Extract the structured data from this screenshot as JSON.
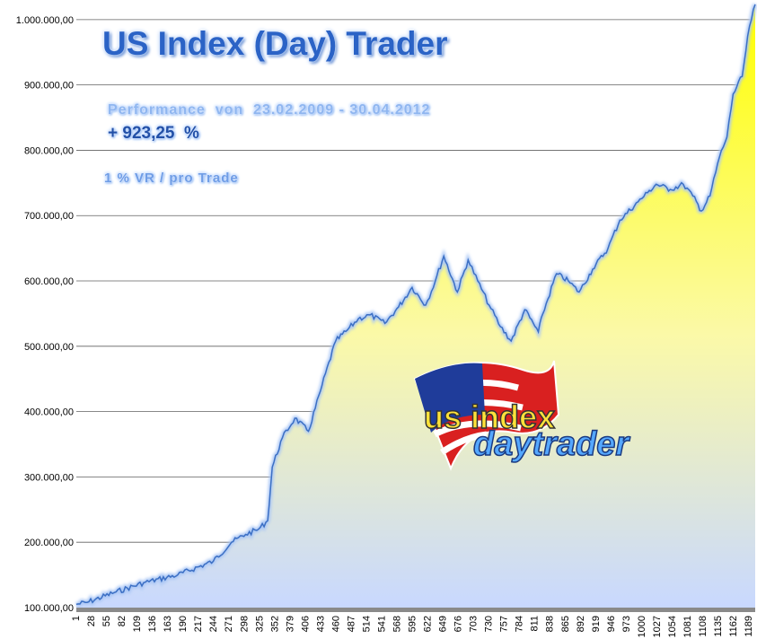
{
  "chart_data": {
    "type": "area",
    "title": "US Index (Day) Trader",
    "annotations": {
      "performance": "Performance  von  23.02.2009 - 30.04.2012",
      "percent": "+ 923,25  %",
      "risk": "1 % VR / pro Trade"
    },
    "logo_text": "us index daytrader",
    "ylim": [
      100000,
      1030000
    ],
    "yticks": [
      100000,
      200000,
      300000,
      400000,
      500000,
      600000,
      700000,
      800000,
      900000,
      1000000
    ],
    "ytick_labels": [
      "100.000,00",
      "200.000,00",
      "300.000,00",
      "400.000,00",
      "500.000,00",
      "600.000,00",
      "700.000,00",
      "800.000,00",
      "900.000,00",
      "1.000.000,00"
    ],
    "xlim": [
      1,
      1200
    ],
    "xtick_labels": [
      "1",
      "28",
      "55",
      "82",
      "109",
      "136",
      "163",
      "190",
      "217",
      "244",
      "271",
      "298",
      "325",
      "352",
      "379",
      "406",
      "433",
      "460",
      "487",
      "514",
      "541",
      "568",
      "595",
      "622",
      "649",
      "676",
      "703",
      "730",
      "757",
      "784",
      "811",
      "838",
      "865",
      "892",
      "919",
      "946",
      "973",
      "1000",
      "1027",
      "1054",
      "1081",
      "1108",
      "1135",
      "1162",
      "1189"
    ],
    "grid": true,
    "legend": "none",
    "colors": {
      "line": "#3b6fc4",
      "fill_top": "#ffff00",
      "fill_bottom": "#c8d8ff",
      "grid": "#606060"
    },
    "series": [
      {
        "x": [
          1,
          20,
          68,
          120,
          180,
          243,
          275,
          300,
          323,
          339,
          347,
          365,
          387,
          411,
          435,
          459,
          480,
          499,
          520,
          546,
          570,
          594,
          618,
          635,
          650,
          674,
          693,
          710,
          730,
          750,
          769,
          793,
          817,
          825,
          849,
          870,
          889,
          913,
          940,
          961,
          993,
          1010,
          1025,
          1050,
          1073,
          1090,
          1105,
          1120,
          1137,
          1150,
          1161,
          1177,
          1190,
          1200
        ],
        "y": [
          105000,
          108000,
          123000,
          138000,
          150000,
          171000,
          200000,
          212000,
          220000,
          233000,
          315000,
          360000,
          390000,
          370000,
          440000,
          508000,
          525000,
          542000,
          548000,
          535000,
          560000,
          590000,
          563000,
          600000,
          638000,
          583000,
          632000,
          600000,
          563000,
          530000,
          508000,
          556000,
          522000,
          550000,
          611000,
          600000,
          583000,
          618000,
          650000,
          693000,
          721000,
          735000,
          748000,
          740000,
          748000,
          730000,
          707000,
          730000,
          790000,
          820000,
          886000,
          913000,
          990000,
          1023250
        ]
      }
    ]
  }
}
